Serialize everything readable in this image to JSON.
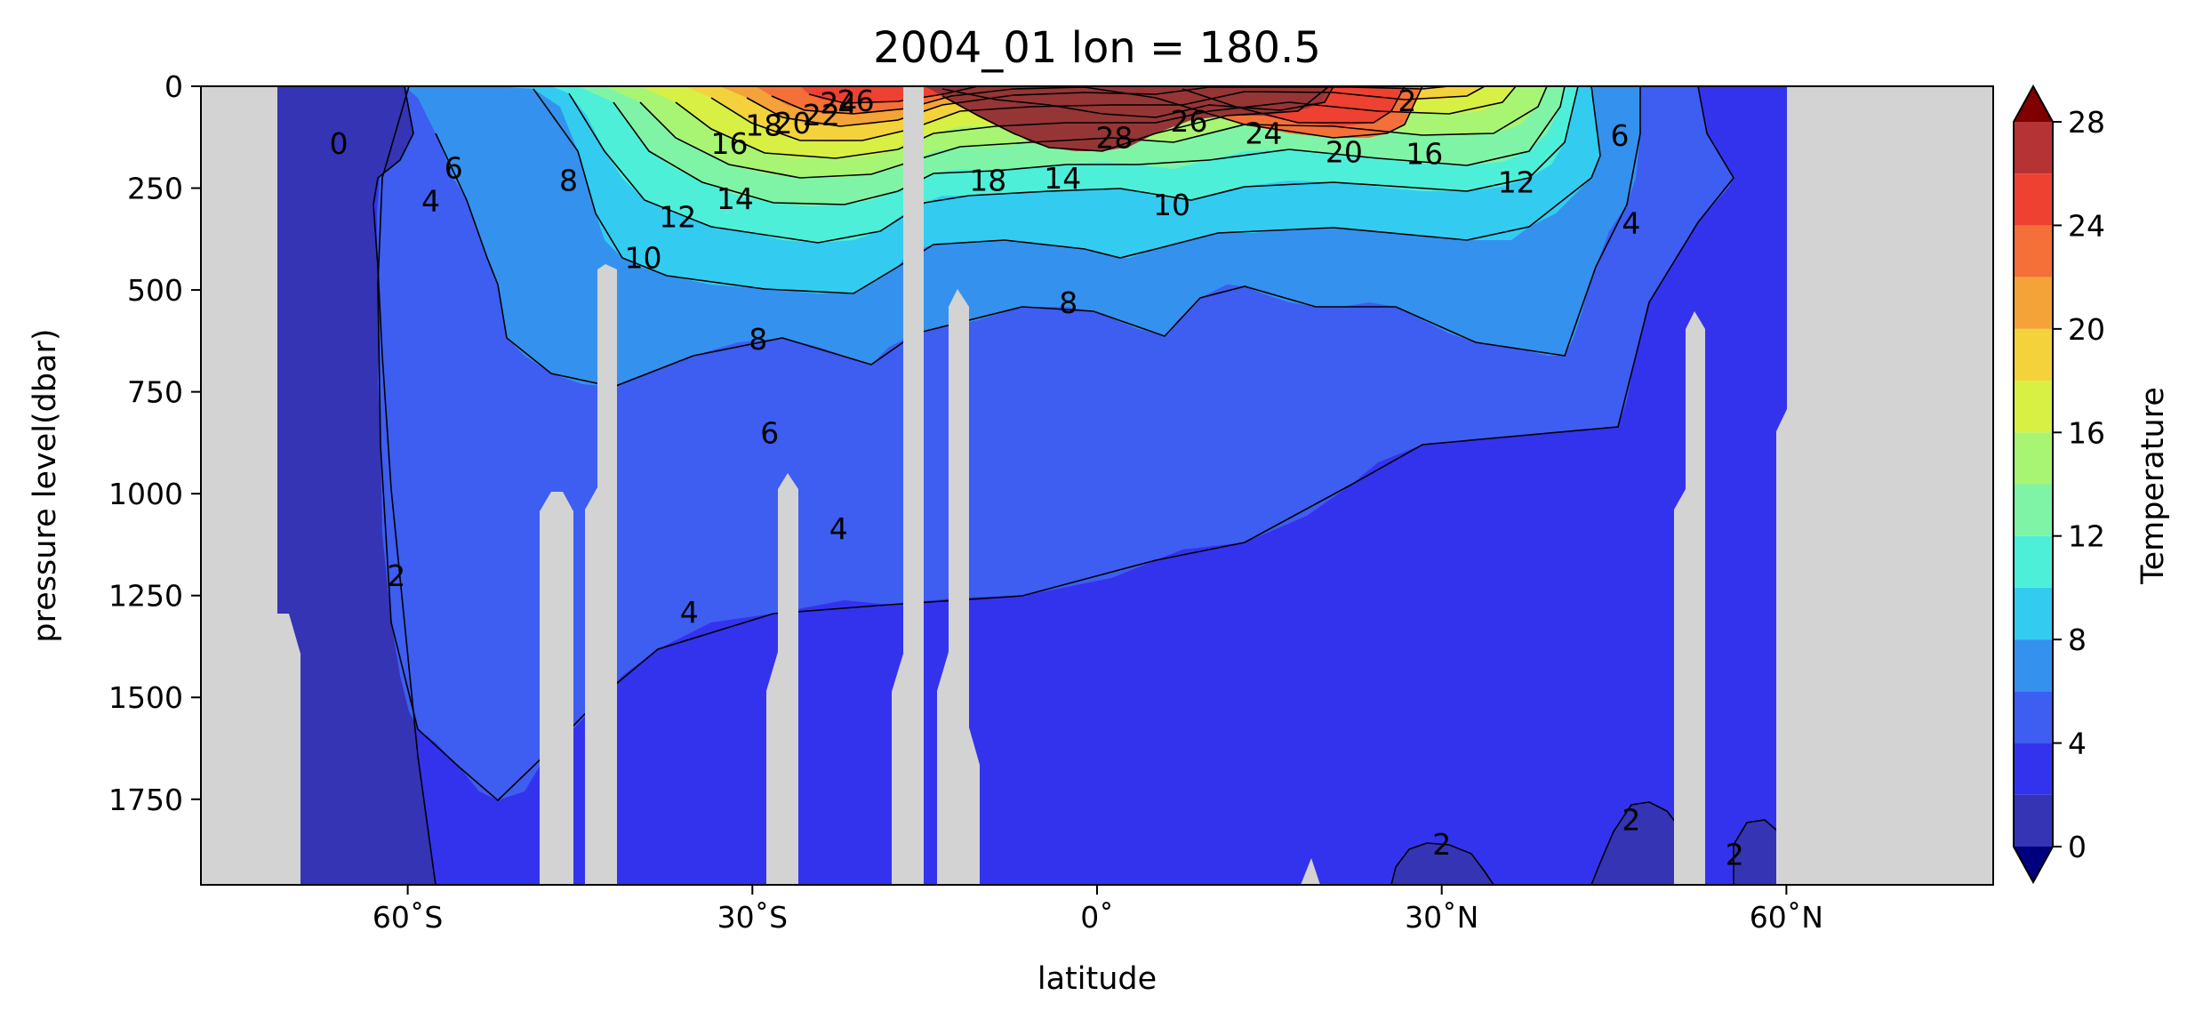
{
  "chart_data": {
    "type": "heatmap",
    "subtype": "filled-contour-section",
    "title": "2004_01 lon = 180.5",
    "xlabel": "latitude",
    "ylabel": "pressure level(dbar)",
    "colorbar_label": "Temperature",
    "xlim": [
      -78,
      78
    ],
    "ylim": [
      1960,
      0
    ],
    "x_ticks": [
      {
        "value": -60,
        "label": "60˚S"
      },
      {
        "value": -30,
        "label": "30˚S"
      },
      {
        "value": 0,
        "label": "0˚"
      },
      {
        "value": 30,
        "label": "30˚N"
      },
      {
        "value": 60,
        "label": "60˚N"
      }
    ],
    "y_ticks": [
      {
        "value": 0,
        "label": "0"
      },
      {
        "value": 250,
        "label": "250"
      },
      {
        "value": 500,
        "label": "500"
      },
      {
        "value": 750,
        "label": "750"
      },
      {
        "value": 1000,
        "label": "1000"
      },
      {
        "value": 1250,
        "label": "1250"
      },
      {
        "value": 1500,
        "label": "1500"
      },
      {
        "value": 1750,
        "label": "1750"
      }
    ],
    "colorbar_ticks": [
      {
        "value": 0,
        "label": "0"
      },
      {
        "value": 4,
        "label": "4"
      },
      {
        "value": 8,
        "label": "8"
      },
      {
        "value": 12,
        "label": "12"
      },
      {
        "value": 16,
        "label": "16"
      },
      {
        "value": 20,
        "label": "20"
      },
      {
        "value": 24,
        "label": "24"
      },
      {
        "value": 28,
        "label": "28"
      }
    ],
    "levels": [
      0,
      2,
      4,
      6,
      8,
      10,
      12,
      14,
      16,
      18,
      20,
      22,
      24,
      26,
      28
    ],
    "level_colors": [
      "#3434b4",
      "#3333ee",
      "#3d5ef0",
      "#3492ee",
      "#33ccf0",
      "#4eefd8",
      "#80f4a6",
      "#a8f574",
      "#d8f044",
      "#f4d23c",
      "#f4a338",
      "#f47038",
      "#ef4132",
      "#b53334",
      "#963535"
    ],
    "under_color": "#00007f",
    "over_color": "#7f0000",
    "land_color": "#d3d3d3",
    "contour_labels": [
      {
        "text": "0",
        "lat": -66,
        "p": 140
      },
      {
        "text": "6",
        "lat": -56,
        "p": 200
      },
      {
        "text": "4",
        "lat": -58,
        "p": 280
      },
      {
        "text": "8",
        "lat": -46,
        "p": 230
      },
      {
        "text": "2",
        "lat": -61,
        "p": 1200
      },
      {
        "text": "10",
        "lat": -39.5,
        "p": 420
      },
      {
        "text": "12",
        "lat": -36.5,
        "p": 320
      },
      {
        "text": "14",
        "lat": -31.5,
        "p": 275
      },
      {
        "text": "16",
        "lat": -32,
        "p": 140
      },
      {
        "text": "18",
        "lat": -29,
        "p": 95
      },
      {
        "text": "20",
        "lat": -26.5,
        "p": 90
      },
      {
        "text": "22",
        "lat": -24,
        "p": 70
      },
      {
        "text": "24",
        "lat": -22.5,
        "p": 40
      },
      {
        "text": "26",
        "lat": -21,
        "p": 35
      },
      {
        "text": "8",
        "lat": -29.5,
        "p": 620
      },
      {
        "text": "6",
        "lat": -28.5,
        "p": 850
      },
      {
        "text": "4",
        "lat": -22.5,
        "p": 1085
      },
      {
        "text": "4",
        "lat": -35.5,
        "p": 1290
      },
      {
        "text": "18",
        "lat": -9.5,
        "p": 230
      },
      {
        "text": "14",
        "lat": -3,
        "p": 225
      },
      {
        "text": "28",
        "lat": 1.5,
        "p": 125
      },
      {
        "text": "26",
        "lat": 8,
        "p": 85
      },
      {
        "text": "24",
        "lat": 14.5,
        "p": 115
      },
      {
        "text": "20",
        "lat": 21.5,
        "p": 160
      },
      {
        "text": "16",
        "lat": 28.5,
        "p": 165
      },
      {
        "text": "12",
        "lat": 36.5,
        "p": 235
      },
      {
        "text": "6",
        "lat": 45.5,
        "p": 120
      },
      {
        "text": "4",
        "lat": 46.5,
        "p": 335
      },
      {
        "text": "2",
        "lat": 27,
        "p": 35
      },
      {
        "text": "10",
        "lat": 6.5,
        "p": 290
      },
      {
        "text": "8",
        "lat": -2.5,
        "p": 530
      },
      {
        "text": "2",
        "lat": 30,
        "p": 1860
      },
      {
        "text": "2",
        "lat": 46.5,
        "p": 1800
      },
      {
        "text": "2",
        "lat": 55.5,
        "p": 1885
      }
    ]
  }
}
